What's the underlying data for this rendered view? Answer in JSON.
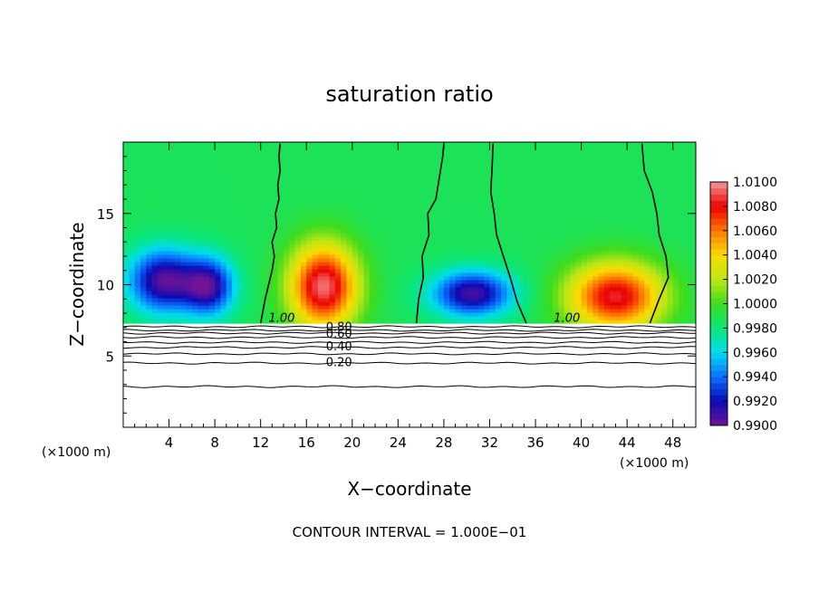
{
  "chart_data": {
    "type": "heatmap",
    "title": "saturation ratio",
    "xlabel": "X−coordinate",
    "ylabel": "Z−coordinate",
    "x_unit_left": "(×1000 m)",
    "x_unit_right": "(×1000 m)",
    "footer": "CONTOUR INTERVAL = 1.000E−01",
    "xlim": [
      0,
      50
    ],
    "ylim": [
      0,
      20
    ],
    "x_ticks": [
      4,
      8,
      12,
      16,
      20,
      24,
      28,
      32,
      36,
      40,
      44,
      48
    ],
    "x_tick_labels": [
      "4",
      "8",
      "12",
      "16",
      "20",
      "24",
      "28",
      "32",
      "36",
      "40",
      "44",
      "48"
    ],
    "y_ticks": [
      5,
      10,
      15
    ],
    "y_tick_labels": [
      "5",
      "10",
      "15"
    ],
    "colorbar": {
      "min": 0.99,
      "max": 1.01,
      "tick_values": [
        0.99,
        0.992,
        0.994,
        0.996,
        0.998,
        1.0,
        1.002,
        1.004,
        1.006,
        1.008,
        1.01
      ],
      "tick_labels": [
        "0.9900",
        "0.9920",
        "0.9940",
        "0.9960",
        "0.9980",
        "1.0000",
        "1.0020",
        "1.0040",
        "1.0060",
        "1.0080",
        "1.0100"
      ]
    },
    "field": {
      "background_value": 0.9987,
      "top_of_shaded_region_z": 7.3,
      "features": [
        {
          "x": 3.5,
          "z": 10.3,
          "value": 0.9905,
          "sx": 3.0,
          "sz": 2.2
        },
        {
          "x": 7.5,
          "z": 9.9,
          "value": 0.9912,
          "sx": 2.2,
          "sz": 2.0
        },
        {
          "x": 17.5,
          "z": 9.9,
          "value": 1.0095,
          "sx": 3.0,
          "sz": 3.0
        },
        {
          "x": 30.5,
          "z": 9.4,
          "value": 0.9908,
          "sx": 3.5,
          "sz": 1.6
        },
        {
          "x": 43.0,
          "z": 9.2,
          "value": 1.0085,
          "sx": 4.2,
          "sz": 2.4
        }
      ]
    },
    "contour_1_00": [
      [
        [
          12.0,
          7.3
        ],
        [
          12.4,
          9.0
        ],
        [
          13.0,
          11.0
        ],
        [
          13.2,
          12.0
        ],
        [
          13.0,
          13.0
        ],
        [
          13.4,
          14.0
        ],
        [
          13.3,
          15.0
        ],
        [
          13.6,
          16.0
        ],
        [
          13.5,
          17.0
        ],
        [
          13.7,
          18.0
        ],
        [
          13.6,
          19.0
        ],
        [
          13.7,
          19.9
        ]
      ],
      [
        [
          25.6,
          7.3
        ],
        [
          25.8,
          9.0
        ],
        [
          26.2,
          10.5
        ],
        [
          26.1,
          12.0
        ],
        [
          26.7,
          13.5
        ],
        [
          26.6,
          15.0
        ],
        [
          27.3,
          16.0
        ],
        [
          27.6,
          17.5
        ],
        [
          27.9,
          19.0
        ],
        [
          28.0,
          19.9
        ]
      ],
      [
        [
          35.2,
          7.3
        ],
        [
          34.4,
          8.8
        ],
        [
          33.8,
          10.5
        ],
        [
          33.2,
          12.0
        ],
        [
          32.6,
          13.5
        ],
        [
          32.4,
          15.0
        ],
        [
          32.1,
          16.5
        ],
        [
          32.2,
          18.0
        ],
        [
          32.3,
          19.9
        ]
      ],
      [
        [
          46.0,
          7.3
        ],
        [
          46.8,
          9.0
        ],
        [
          47.6,
          10.5
        ],
        [
          47.4,
          12.0
        ],
        [
          46.8,
          13.5
        ],
        [
          46.6,
          15.0
        ],
        [
          46.2,
          16.5
        ],
        [
          45.5,
          18.0
        ],
        [
          45.3,
          19.9
        ]
      ]
    ],
    "contour_labels": [
      {
        "text": "1.00",
        "x": 12.7,
        "z": 7.4
      },
      {
        "text": "1.00",
        "x": 37.6,
        "z": 7.4
      },
      {
        "text": "0.80",
        "x": 17.7,
        "z": 6.75
      },
      {
        "text": "0.60",
        "x": 17.7,
        "z": 6.3
      },
      {
        "text": "0.40",
        "x": 17.7,
        "z": 5.4
      },
      {
        "text": "0.20",
        "x": 17.7,
        "z": 4.3
      }
    ],
    "subcloud_contours": [
      {
        "value": 0.9,
        "z": 7.05
      },
      {
        "value": 0.8,
        "z": 6.8
      },
      {
        "value": 0.7,
        "z": 6.6
      },
      {
        "value": 0.6,
        "z": 6.3
      },
      {
        "value": 0.5,
        "z": 5.95
      },
      {
        "value": 0.4,
        "z": 5.6
      },
      {
        "value": 0.3,
        "z": 5.15
      },
      {
        "value": 0.2,
        "z": 4.5
      },
      {
        "value": 0.1,
        "z": 2.85
      }
    ]
  }
}
